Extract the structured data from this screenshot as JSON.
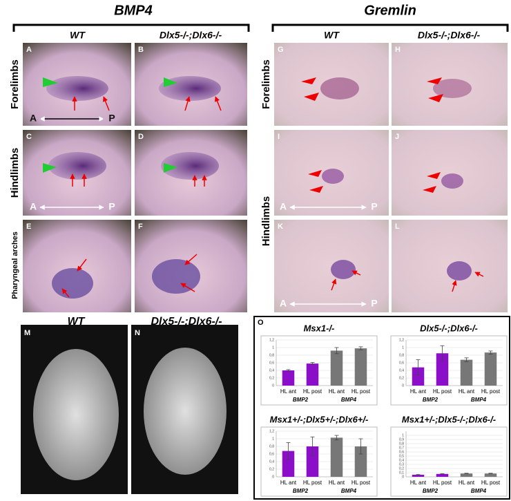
{
  "headers": [
    "BMP4",
    "Gremlin"
  ],
  "columns": [
    "WT",
    "Dlx5-/-;Dlx6-/-",
    "WT",
    "Dlx5-/-;Dlx6-/-",
    "WT",
    "Dlx5-/-;Dlx6-/-"
  ],
  "row_labels": [
    "Forelimbs",
    "Hindlimbs",
    "Pharyngeal arches",
    "Forelimbs",
    "Hindlimbs"
  ],
  "axis_labels": [
    "A",
    "P"
  ],
  "panel_letters": [
    "A",
    "B",
    "C",
    "D",
    "E",
    "F",
    "G",
    "H",
    "I",
    "J",
    "K",
    "L",
    "M",
    "N",
    "O"
  ],
  "chart_data": [
    {
      "type": "bar",
      "title": "Msx1-/-",
      "categories": [
        "HL ant",
        "HL post",
        "HL ant",
        "HL post"
      ],
      "groups": [
        "BMP2",
        "BMP4"
      ],
      "values": [
        0.4,
        0.58,
        0.92,
        0.98
      ],
      "errors": [
        0.02,
        0.03,
        0.08,
        0.04
      ],
      "colors": [
        "#8b0fc8",
        "#8b0fc8",
        "#777777",
        "#777777"
      ],
      "ylim": [
        0,
        1.2
      ],
      "yticks": [
        0,
        {
          "value": 0.2,
          "label": "0,2"
        },
        {
          "value": 0.4,
          "label": "0,4"
        },
        {
          "value": 0.6,
          "label": "0,6"
        },
        {
          "value": 0.8,
          "label": "0,8"
        },
        1,
        {
          "value": 1.2,
          "label": "1,2"
        }
      ],
      "grid": true
    },
    {
      "type": "bar",
      "title": "Dlx5-/-;Dlx6-/-",
      "categories": [
        "HL ant",
        "HL post",
        "HL ant",
        "HL post"
      ],
      "groups": [
        "BMP2",
        "BMP4"
      ],
      "values": [
        0.48,
        0.85,
        0.68,
        0.87
      ],
      "errors": [
        0.2,
        0.2,
        0.05,
        0.04
      ],
      "colors": [
        "#8b0fc8",
        "#8b0fc8",
        "#777777",
        "#777777"
      ],
      "ylim": [
        0,
        1.2
      ],
      "yticks": [
        0,
        {
          "value": 0.2,
          "label": "0,2"
        },
        {
          "value": 0.4,
          "label": "0,4"
        },
        {
          "value": 0.6,
          "label": "0,6"
        },
        {
          "value": 0.8,
          "label": "0,8"
        },
        1,
        {
          "value": 1.2,
          "label": "1,2"
        }
      ],
      "grid": true
    },
    {
      "type": "bar",
      "title": "Msx1+/-;Dlx5+/-;Dlx6+/-",
      "categories": [
        "HL ant",
        "HL post",
        "HL ant",
        "HL post"
      ],
      "groups": [
        "BMP2",
        "BMP4"
      ],
      "values": [
        0.68,
        0.8,
        1.03,
        0.8
      ],
      "errors": [
        0.22,
        0.25,
        0.06,
        0.2
      ],
      "colors": [
        "#8b0fc8",
        "#8b0fc8",
        "#777777",
        "#777777"
      ],
      "ylim": [
        0,
        1.2
      ],
      "yticks": [
        0,
        {
          "value": 0.2,
          "label": "0,2"
        },
        {
          "value": 0.4,
          "label": "0,4"
        },
        {
          "value": 0.6,
          "label": "0,6"
        },
        {
          "value": 0.8,
          "label": "0,8"
        },
        1,
        {
          "value": 1.2,
          "label": "1,2"
        }
      ],
      "grid": true
    },
    {
      "type": "bar",
      "title": "Msx1+/-;Dlx5-/-;Dlx6-/-",
      "categories": [
        "HL ant",
        "HL post",
        "HL ant",
        "HL post"
      ],
      "groups": [
        "BMP2",
        "BMP4"
      ],
      "values": [
        0.05,
        0.07,
        0.08,
        0.08
      ],
      "errors": [
        0.005,
        0.005,
        0.005,
        0.005
      ],
      "colors": [
        "#8b0fc8",
        "#8b0fc8",
        "#777777",
        "#777777"
      ],
      "ylim": [
        0,
        1.1
      ],
      "yticks": [
        0,
        {
          "value": 0.1,
          "label": "0,1"
        },
        {
          "value": 0.2,
          "label": "0,2"
        },
        {
          "value": 0.3,
          "label": "0,3"
        },
        {
          "value": 0.4,
          "label": "0,4"
        },
        {
          "value": 0.5,
          "label": "0,5"
        },
        {
          "value": 0.6,
          "label": "0,6"
        },
        {
          "value": 0.7,
          "label": "0,7"
        },
        {
          "value": 0.8,
          "label": "0,8"
        },
        {
          "value": 0.9,
          "label": "0,9"
        },
        1
      ],
      "grid": true
    }
  ]
}
